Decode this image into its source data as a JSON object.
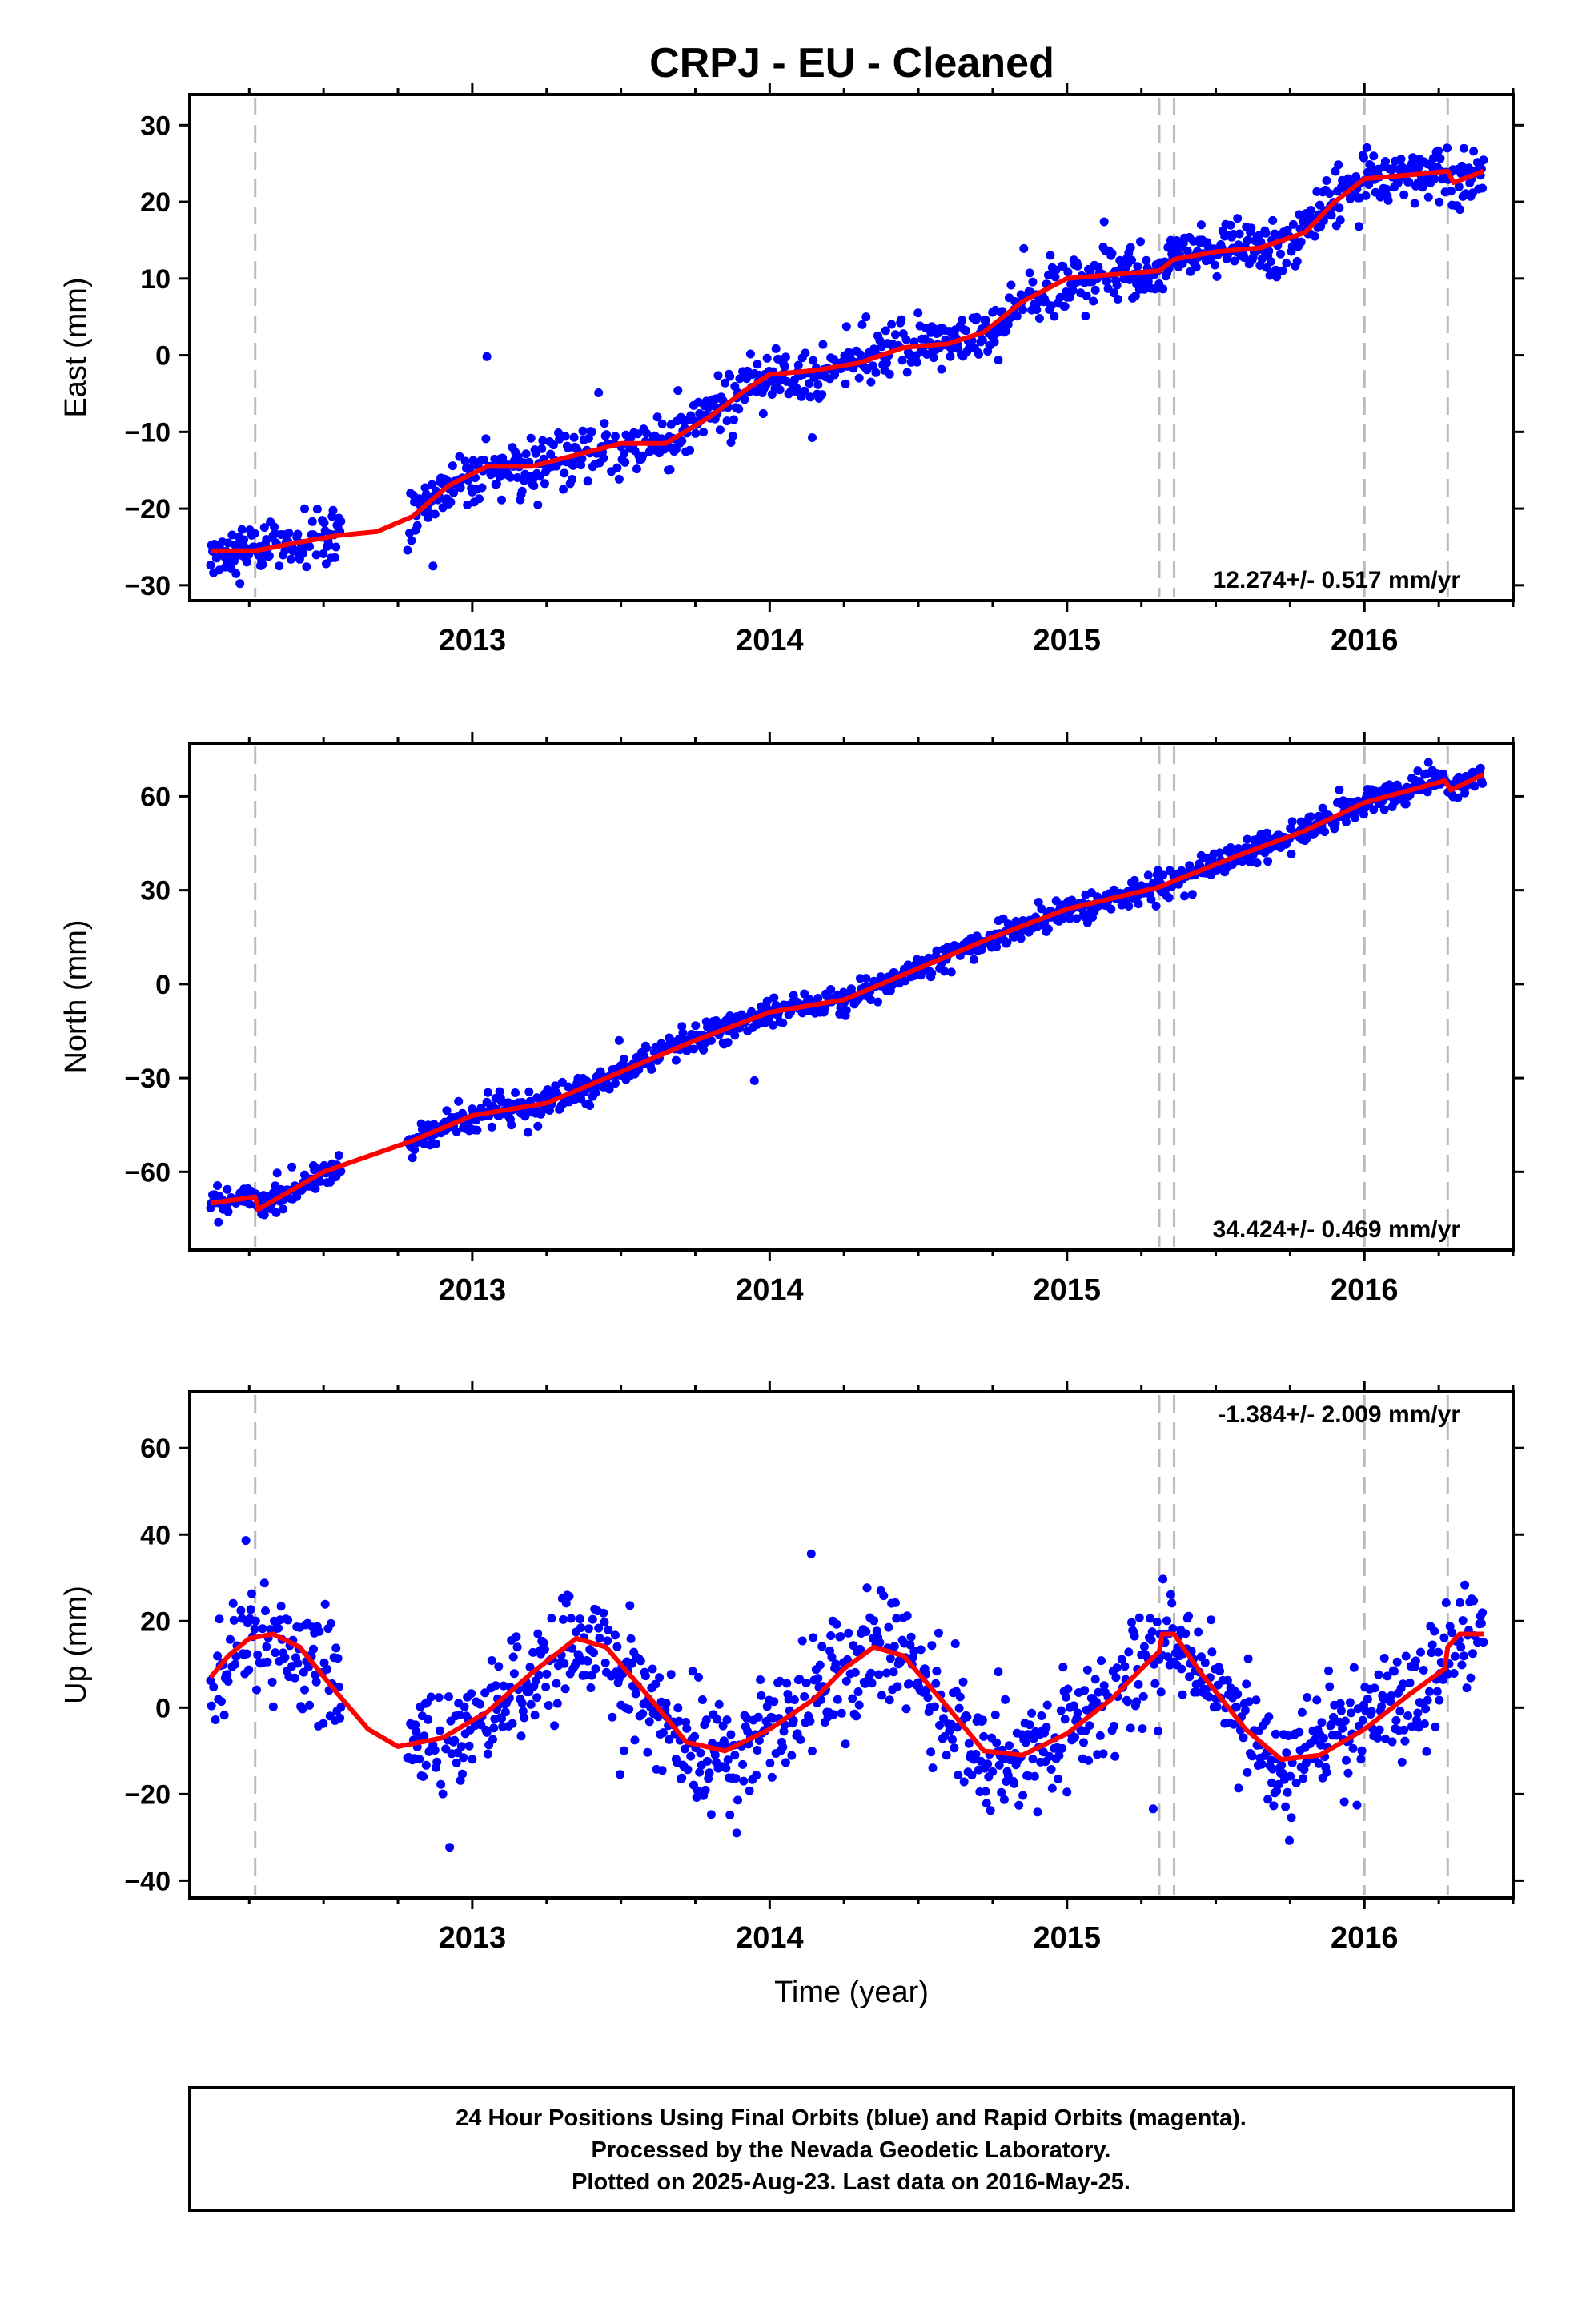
{
  "title": "CRPJ  - EU - Cleaned",
  "colors": {
    "points": "#0000ff",
    "model": "#ff0000",
    "breaks": "#bbbbbb",
    "frame": "#000000"
  },
  "footer": {
    "line1": "24 Hour Positions Using Final Orbits (blue) and Rapid Orbits (magenta).",
    "line2": "Processed by the Nevada Geodetic Laboratory.",
    "line3": "Plotted on 2025-Aug-23. Last data on 2016-May-25."
  },
  "chart_data": [
    {
      "type": "scatter",
      "component": "east",
      "ylabel": "East (mm)",
      "xlim": [
        2012.05,
        2016.5
      ],
      "ylim": [
        -32,
        34
      ],
      "yticks": [
        -30,
        -20,
        -10,
        0,
        10,
        20,
        30
      ],
      "xticks": [
        2013,
        2014,
        2015,
        2016
      ],
      "rate_label": "12.274+/- 0.517 mm/yr",
      "rate_position": "bottom-right",
      "breaks": [
        2012.27,
        2015.31,
        2015.36,
        2016.0,
        2016.28
      ],
      "model": {
        "x": [
          2012.12,
          2012.27,
          2012.4,
          2012.55,
          2012.68,
          2012.8,
          2012.92,
          2013.05,
          2013.2,
          2013.35,
          2013.5,
          2013.65,
          2013.8,
          2013.92,
          2014.0,
          2014.15,
          2014.3,
          2014.45,
          2014.6,
          2014.72,
          2014.85,
          2015.0,
          2015.15,
          2015.31,
          2015.36,
          2015.5,
          2015.65,
          2015.8,
          2015.9,
          2016.0,
          2016.15,
          2016.28,
          2016.3,
          2016.4
        ],
        "y": [
          -25.5,
          -25.5,
          -24.5,
          -23.5,
          -23.0,
          -21.0,
          -17.0,
          -14.5,
          -14.5,
          -13.0,
          -11.5,
          -11.5,
          -8.0,
          -4.5,
          -2.5,
          -2.0,
          -1.0,
          1.0,
          1.5,
          3.0,
          7.0,
          10.0,
          10.5,
          11.0,
          12.5,
          13.5,
          14.0,
          16.0,
          20.0,
          23.0,
          23.5,
          24.0,
          22.5,
          24.0
        ]
      },
      "gaps": [
        [
          2012.56,
          2012.78
        ]
      ]
    },
    {
      "type": "scatter",
      "component": "north",
      "ylabel": "North (mm)",
      "xlim": [
        2012.05,
        2016.5
      ],
      "ylim": [
        -85,
        77
      ],
      "yticks": [
        -60,
        -30,
        0,
        30,
        60
      ],
      "xticks": [
        2013,
        2014,
        2015,
        2016
      ],
      "rate_label": "34.424+/- 0.469 mm/yr",
      "rate_position": "bottom-right",
      "breaks": [
        2012.27,
        2015.31,
        2015.36,
        2016.0,
        2016.28
      ],
      "model": {
        "x": [
          2012.12,
          2012.27,
          2012.28,
          2012.5,
          2012.8,
          2013.0,
          2013.25,
          2013.5,
          2013.75,
          2014.0,
          2014.25,
          2014.5,
          2014.75,
          2015.0,
          2015.31,
          2015.36,
          2015.6,
          2015.8,
          2016.0,
          2016.27,
          2016.29,
          2016.4
        ],
        "y": [
          -70,
          -68,
          -72,
          -60,
          -50,
          -42,
          -38,
          -28,
          -18,
          -9,
          -5,
          5,
          15,
          24,
          31,
          33,
          42,
          49,
          58,
          65,
          62,
          67
        ]
      },
      "gaps": [
        [
          2012.56,
          2012.78
        ]
      ]
    },
    {
      "type": "scatter",
      "component": "up",
      "ylabel": "Up (mm)",
      "xlabel": "Time (year)",
      "xlim": [
        2012.05,
        2016.5
      ],
      "ylim": [
        -44,
        73
      ],
      "yticks": [
        -40,
        -20,
        0,
        20,
        40,
        60
      ],
      "xticks": [
        2013,
        2014,
        2015,
        2016
      ],
      "rate_label": "-1.384+/- 2.009 mm/yr",
      "rate_position": "top-right",
      "breaks": [
        2012.27,
        2015.31,
        2015.36,
        2016.0,
        2016.28
      ],
      "model": {
        "x": [
          2012.12,
          2012.18,
          2012.25,
          2012.33,
          2012.42,
          2012.55,
          2012.65,
          2012.75,
          2012.9,
          2013.05,
          2013.2,
          2013.35,
          2013.45,
          2013.6,
          2013.72,
          2013.85,
          2014.0,
          2014.15,
          2014.25,
          2014.35,
          2014.45,
          2014.6,
          2014.72,
          2014.85,
          2015.0,
          2015.15,
          2015.25,
          2015.31,
          2015.32,
          2015.36,
          2015.45,
          2015.6,
          2015.72,
          2015.85,
          2016.0,
          2016.15,
          2016.27,
          2016.28,
          2016.32,
          2016.4
        ],
        "y": [
          7,
          12,
          16,
          17,
          14,
          3,
          -5,
          -9,
          -7,
          -1,
          8,
          16,
          14,
          2,
          -8,
          -10,
          -5,
          2,
          9,
          14,
          12,
          0,
          -10,
          -11,
          -6,
          2,
          9,
          13,
          17,
          17,
          8,
          -5,
          -12,
          -11,
          -5,
          3,
          9,
          14,
          17,
          17
        ]
      },
      "gaps": [
        [
          2012.56,
          2012.78
        ]
      ]
    }
  ]
}
